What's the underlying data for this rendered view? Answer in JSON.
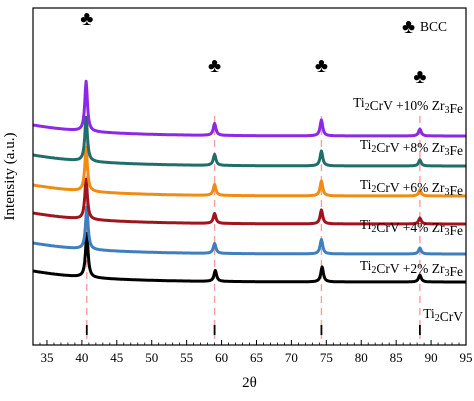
{
  "chart_data": {
    "type": "line",
    "xlabel": "2θ",
    "ylabel": "Intensity (a.u.)",
    "xlim": [
      33,
      95
    ],
    "x_ticks": [
      35,
      40,
      45,
      50,
      55,
      60,
      65,
      70,
      75,
      80,
      85,
      90,
      95
    ],
    "y_ticks": [],
    "grid": false,
    "legend": {
      "symbol": "♣",
      "label": "BCC",
      "placement": "top-right"
    },
    "marked_peaks_2theta": [
      40.7,
      59.0,
      74.3,
      88.4
    ],
    "reference_peaks_2theta": [
      40.7,
      59.0,
      74.3,
      88.4
    ],
    "series": [
      {
        "name": "Ti2CrV",
        "label_main": "Ti",
        "label_parts": [
          [
            "Ti",
            "2"
          ],
          [
            "CrV",
            ""
          ]
        ],
        "color": "#000000",
        "baseline": 0.0,
        "peaks": [
          {
            "x": 40.7,
            "h": 2.2
          },
          {
            "x": 59.1,
            "h": 0.55
          },
          {
            "x": 74.4,
            "h": 0.75
          },
          {
            "x": 88.4,
            "h": 0.35
          }
        ]
      },
      {
        "name": "Ti2CrV +2% Zr3Fe",
        "color": "#3f7fbf",
        "baseline": 1.4,
        "peaks": [
          {
            "x": 40.7,
            "h": 2.1
          },
          {
            "x": 59.0,
            "h": 0.5
          },
          {
            "x": 74.3,
            "h": 0.72
          },
          {
            "x": 88.4,
            "h": 0.3
          }
        ]
      },
      {
        "name": "Ti2CrV +4% Zr3Fe",
        "color": "#a0141e",
        "baseline": 2.9,
        "peaks": [
          {
            "x": 40.6,
            "h": 2.0
          },
          {
            "x": 59.0,
            "h": 0.5
          },
          {
            "x": 74.3,
            "h": 0.7
          },
          {
            "x": 88.4,
            "h": 0.3
          }
        ]
      },
      {
        "name": "Ti2CrV +6% Zr3Fe",
        "color": "#f08c14",
        "baseline": 4.3,
        "peaks": [
          {
            "x": 40.6,
            "h": 2.2
          },
          {
            "x": 59.0,
            "h": 0.55
          },
          {
            "x": 74.3,
            "h": 0.75
          },
          {
            "x": 88.4,
            "h": 0.3
          }
        ]
      },
      {
        "name": "Ti2CrV +8% Zr3Fe",
        "color": "#1f6e6a",
        "baseline": 5.8,
        "peaks": [
          {
            "x": 40.6,
            "h": 2.2
          },
          {
            "x": 59.0,
            "h": 0.55
          },
          {
            "x": 74.3,
            "h": 0.75
          },
          {
            "x": 88.4,
            "h": 0.3
          }
        ]
      },
      {
        "name": "Ti2CrV +10% Zr3Fe",
        "color": "#8c28e6",
        "baseline": 7.3,
        "peaks": [
          {
            "x": 40.6,
            "h": 2.5
          },
          {
            "x": 59.0,
            "h": 0.6
          },
          {
            "x": 74.3,
            "h": 0.8
          },
          {
            "x": 88.4,
            "h": 0.35
          }
        ]
      }
    ],
    "series_labels": [
      {
        "a": "Ti",
        "b": "2",
        "c": "CrV",
        "d": "",
        "e": "",
        "f": ""
      },
      {
        "a": "Ti",
        "b": "2",
        "c": "CrV +2% Zr",
        "d": "3",
        "e": "Fe",
        "f": ""
      },
      {
        "a": "Ti",
        "b": "2",
        "c": "CrV +4% Zr",
        "d": "3",
        "e": "Fe",
        "f": ""
      },
      {
        "a": "Ti",
        "b": "2",
        "c": "CrV +6% Zr",
        "d": "3",
        "e": "Fe",
        "f": ""
      },
      {
        "a": "Ti",
        "b": "2",
        "c": "CrV +8% Zr",
        "d": "3",
        "e": "Fe",
        "f": ""
      },
      {
        "a": "Ti",
        "b": "2",
        "c": "CrV +10% Zr",
        "d": "3",
        "e": "Fe",
        "f": ""
      }
    ]
  }
}
